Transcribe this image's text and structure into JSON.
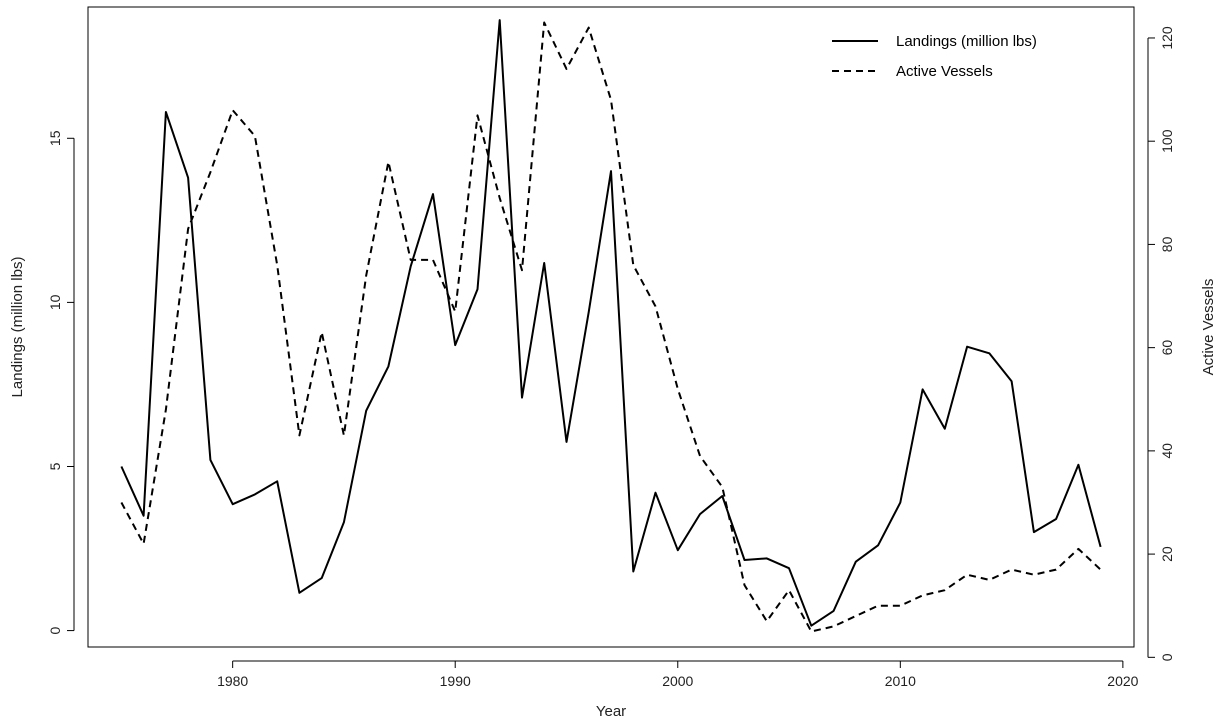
{
  "chart_data": {
    "type": "line",
    "xlabel": "Year",
    "ylabel_left": "Landings (million lbs)",
    "ylabel_right": "Active Vessels",
    "xlim": [
      1973.5,
      2020.5
    ],
    "ylim_left": [
      -0.5,
      19.0
    ],
    "ylim_right": [
      2,
      126
    ],
    "x_ticks": [
      1980,
      1990,
      2000,
      2010,
      2020
    ],
    "y_ticks_left": [
      0,
      5,
      10,
      15
    ],
    "y_ticks_right": [
      0,
      20,
      40,
      60,
      80,
      100,
      120
    ],
    "grid": false,
    "legend_position": "top-right",
    "series": [
      {
        "name": "Landings (million lbs)",
        "axis": "left",
        "line_style": "solid",
        "color": "#000000",
        "x": [
          1975,
          1976,
          1977,
          1978,
          1979,
          1980,
          1981,
          1982,
          1983,
          1984,
          1985,
          1986,
          1987,
          1988,
          1989,
          1990,
          1991,
          1992,
          1993,
          1994,
          1995,
          1996,
          1997,
          1998,
          1999,
          2000,
          2001,
          2002,
          2003,
          2004,
          2005,
          2006,
          2007,
          2008,
          2009,
          2010,
          2011,
          2012,
          2013,
          2014,
          2015,
          2016,
          2017,
          2018,
          2019
        ],
        "values": [
          5.0,
          3.5,
          15.8,
          13.8,
          5.2,
          3.85,
          4.15,
          4.55,
          1.15,
          1.6,
          3.3,
          6.7,
          8.05,
          11.1,
          13.3,
          8.7,
          10.4,
          18.6,
          7.1,
          11.2,
          5.75,
          9.7,
          14.0,
          1.8,
          4.2,
          2.45,
          3.55,
          4.1,
          2.15,
          2.2,
          1.9,
          0.15,
          0.6,
          2.1,
          2.6,
          3.9,
          7.35,
          6.15,
          8.65,
          8.45,
          7.6,
          3.0,
          3.4,
          5.05,
          2.55
        ]
      },
      {
        "name": "Active Vessels",
        "axis": "right",
        "line_style": "dashed",
        "color": "#000000",
        "x": [
          1975,
          1976,
          1977,
          1978,
          1979,
          1980,
          1981,
          1982,
          1983,
          1984,
          1985,
          1986,
          1987,
          1988,
          1989,
          1990,
          1991,
          1992,
          1993,
          1994,
          1995,
          1996,
          1997,
          1998,
          1999,
          2000,
          2001,
          2002,
          2003,
          2004,
          2005,
          2006,
          2007,
          2008,
          2009,
          2010,
          2011,
          2012,
          2013,
          2014,
          2015,
          2016,
          2017,
          2018,
          2019
        ],
        "values": [
          30,
          22,
          48,
          83,
          94,
          106,
          101,
          76,
          43,
          63,
          43,
          74,
          96,
          77,
          77,
          67,
          105,
          89,
          75,
          123,
          114,
          122,
          108,
          76,
          68,
          52,
          39,
          33,
          14,
          7,
          13,
          5,
          6,
          8,
          10,
          10,
          12,
          13,
          16,
          15,
          17,
          16,
          17,
          21,
          17
        ]
      }
    ]
  }
}
